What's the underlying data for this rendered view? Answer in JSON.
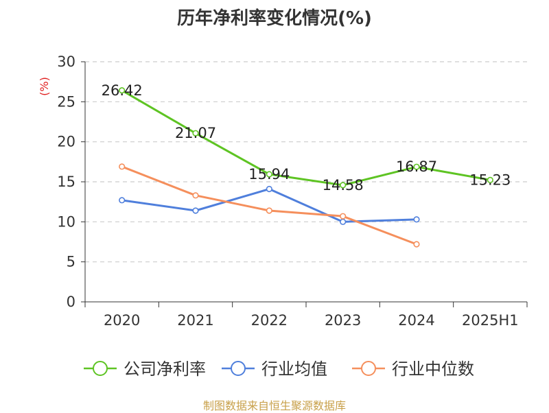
{
  "chart_data": {
    "type": "line",
    "title": "历年净利率变化情况(%)",
    "ylabel": "(%)",
    "categories": [
      "2020",
      "2021",
      "2022",
      "2023",
      "2024",
      "2025H1"
    ],
    "ylim": [
      0,
      30
    ],
    "yticks": [
      0,
      5,
      10,
      15,
      20,
      25,
      30
    ],
    "grid": true,
    "legend_position": "bottom",
    "series": [
      {
        "name": "公司净利率",
        "color": "#5ec423",
        "values": [
          26.42,
          21.07,
          15.94,
          14.58,
          16.87,
          15.23
        ],
        "labels": [
          "26.42",
          "21.07",
          "15.94",
          "14.58",
          "16.87",
          "15.23"
        ]
      },
      {
        "name": "行业均值",
        "color": "#4f7fdc",
        "values": [
          12.7,
          11.4,
          14.1,
          10.0,
          10.3,
          null
        ]
      },
      {
        "name": "行业中位数",
        "color": "#f58f5c",
        "values": [
          16.9,
          13.3,
          11.4,
          10.7,
          7.2,
          null
        ]
      }
    ]
  },
  "footer": {
    "source": "制图数据来自恒生聚源数据库"
  }
}
